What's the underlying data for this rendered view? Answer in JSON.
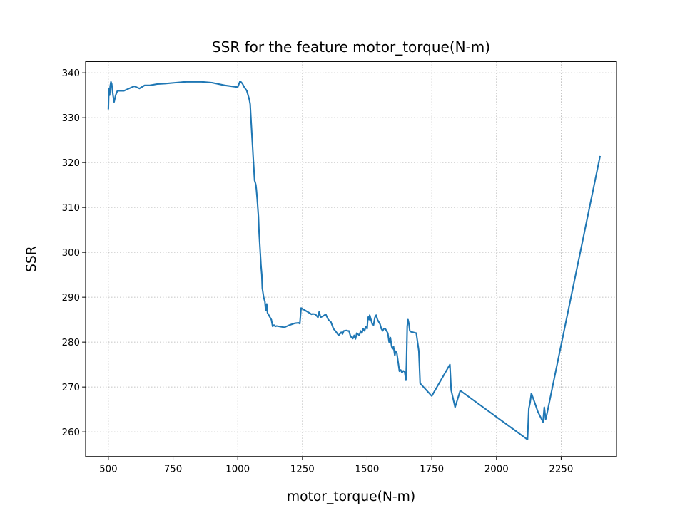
{
  "chart_data": {
    "type": "line",
    "title": "SSR for the feature motor_torque(N-m)",
    "xlabel": "motor_torque(N-m)",
    "ylabel": "SSR",
    "xlim": [
      412,
      2464
    ],
    "ylim": [
      254.5,
      342.5
    ],
    "xticks": [
      500,
      750,
      1000,
      1250,
      1500,
      1750,
      2000,
      2250
    ],
    "yticks": [
      260,
      270,
      280,
      290,
      300,
      310,
      320,
      330,
      340
    ],
    "grid": true,
    "line_color": "#1f77b4",
    "series": [
      {
        "x": [
          500,
          502,
          505,
          507,
          510,
          513,
          518,
          522,
          528,
          535,
          545,
          560,
          580,
          600,
          620,
          640,
          660,
          690,
          720,
          760,
          800,
          860,
          900,
          950,
          1000,
          1008,
          1012,
          1018,
          1025,
          1035,
          1045,
          1048,
          1052,
          1058,
          1060,
          1065,
          1068,
          1070,
          1072,
          1075,
          1080,
          1082,
          1085,
          1088,
          1090,
          1093,
          1095,
          1100,
          1105,
          1108,
          1112,
          1115,
          1120,
          1125,
          1130,
          1135,
          1140,
          1145,
          1150,
          1160,
          1180,
          1200,
          1220,
          1235,
          1240,
          1245,
          1280,
          1285,
          1290,
          1300,
          1310,
          1315,
          1320,
          1330,
          1340,
          1350,
          1360,
          1370,
          1380,
          1390,
          1400,
          1405,
          1410,
          1420,
          1425,
          1430,
          1435,
          1440,
          1445,
          1450,
          1455,
          1460,
          1470,
          1475,
          1480,
          1485,
          1490,
          1495,
          1500,
          1503,
          1505,
          1508,
          1510,
          1515,
          1520,
          1525,
          1530,
          1535,
          1540,
          1545,
          1550,
          1555,
          1560,
          1565,
          1570,
          1575,
          1580,
          1585,
          1590,
          1595,
          1598,
          1602,
          1607,
          1610,
          1615,
          1620,
          1625,
          1630,
          1635,
          1640,
          1645,
          1650,
          1652,
          1655,
          1658,
          1662,
          1665,
          1670,
          1690,
          1695,
          1700,
          1705,
          1750,
          1820,
          1825,
          1840,
          1860,
          2120,
          2125,
          2130,
          2135,
          2145,
          2160,
          2180,
          2185,
          2190,
          2195,
          2400
        ],
        "y": [
          332.0,
          336.5,
          335.0,
          337.0,
          338.0,
          337.5,
          335.0,
          333.5,
          335.0,
          336.0,
          336.0,
          336.0,
          336.5,
          337.0,
          336.5,
          337.2,
          337.2,
          337.5,
          337.6,
          337.8,
          338.0,
          338.0,
          337.8,
          337.2,
          336.8,
          338.0,
          338.0,
          337.6,
          336.8,
          336.0,
          334.0,
          333.0,
          329.0,
          323.0,
          321.0,
          316.0,
          315.5,
          315.0,
          314.0,
          312.0,
          308.0,
          305.0,
          302.0,
          299.0,
          297.0,
          295.0,
          292.0,
          290.0,
          289.0,
          287.0,
          288.5,
          286.5,
          286.0,
          285.5,
          285.0,
          283.5,
          283.8,
          283.5,
          283.6,
          283.5,
          283.3,
          283.8,
          284.2,
          284.3,
          284.1,
          287.6,
          286.4,
          286.2,
          286.3,
          286.2,
          285.5,
          286.8,
          285.5,
          285.8,
          286.2,
          285.0,
          284.5,
          283.0,
          282.3,
          281.5,
          282.2,
          281.8,
          282.5,
          282.6,
          282.5,
          282.5,
          281.5,
          281.0,
          280.8,
          281.5,
          280.7,
          282.0,
          281.5,
          282.5,
          282.0,
          283.0,
          282.5,
          283.5,
          283.0,
          285.5,
          285.6,
          285.0,
          286.0,
          285.0,
          284.0,
          283.8,
          285.5,
          286.0,
          285.0,
          284.5,
          284.0,
          283.0,
          282.5,
          283.0,
          283.0,
          282.5,
          282.0,
          280.0,
          281.0,
          279.0,
          278.5,
          279.0,
          277.0,
          278.0,
          277.5,
          275.5,
          273.5,
          273.8,
          273.2,
          273.6,
          273.4,
          271.5,
          275.0,
          283.5,
          285.0,
          284.0,
          282.5,
          282.3,
          282.0,
          280.0,
          278.0,
          270.8,
          268.0,
          275.0,
          269.3,
          265.5,
          269.2,
          258.3,
          265.2,
          266.5,
          268.6,
          267.0,
          264.5,
          262.2,
          265.5,
          262.8,
          264.0,
          321.3
        ]
      }
    ]
  }
}
